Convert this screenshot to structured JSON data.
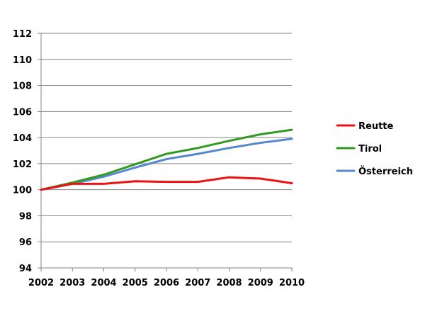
{
  "chart_data": {
    "type": "line",
    "title": "",
    "xlabel": "",
    "ylabel": "",
    "x": [
      2002,
      2003,
      2004,
      2005,
      2006,
      2007,
      2008,
      2009,
      2010
    ],
    "x_tick_labels": [
      "2002",
      "2003",
      "2004",
      "2005",
      "2006",
      "2007",
      "2008",
      "2009",
      "2010"
    ],
    "ylim": [
      94,
      112
    ],
    "y_ticks": [
      94,
      96,
      98,
      100,
      102,
      104,
      106,
      108,
      110,
      112
    ],
    "y_tick_labels": [
      "94",
      "96",
      "98",
      "100",
      "102",
      "104",
      "106",
      "108",
      "110",
      "112"
    ],
    "grid": "horizontal",
    "legend_position": "right",
    "series": [
      {
        "name": "Reutte",
        "color": "#ee1111",
        "values": [
          100.0,
          100.45,
          100.45,
          100.65,
          100.6,
          100.6,
          100.95,
          100.85,
          100.5
        ]
      },
      {
        "name": "Tirol",
        "color": "#339922",
        "values": [
          100.0,
          100.55,
          101.15,
          101.95,
          102.75,
          103.2,
          103.75,
          104.25,
          104.6
        ]
      },
      {
        "name": "Österreich",
        "color": "#5588cc",
        "values": [
          100.0,
          100.45,
          101.0,
          101.7,
          102.35,
          102.75,
          103.2,
          103.6,
          103.9
        ]
      }
    ]
  }
}
